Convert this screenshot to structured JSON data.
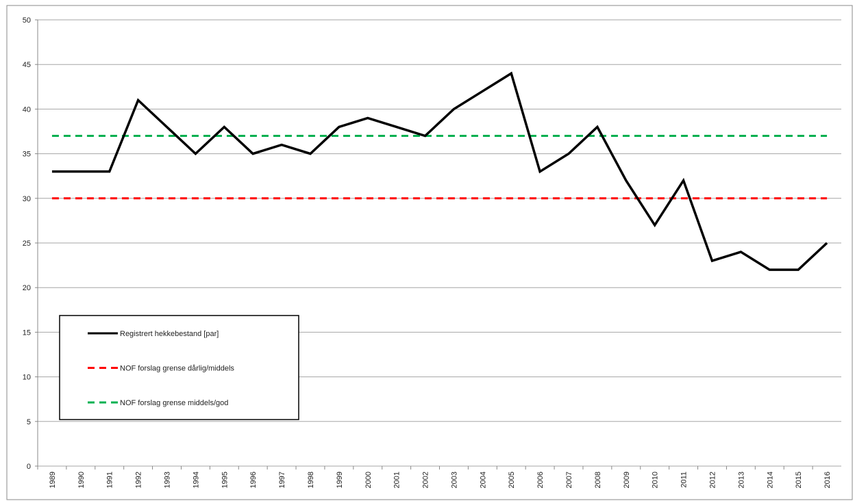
{
  "chart_data": {
    "type": "line",
    "categories": [
      "1989",
      "1990",
      "1991",
      "1992",
      "1993",
      "1994",
      "1995",
      "1996",
      "1997",
      "1998",
      "1999",
      "2000",
      "2001",
      "2002",
      "2003",
      "2004",
      "2005",
      "2006",
      "2007",
      "2008",
      "2009",
      "2010",
      "2011",
      "2012",
      "2013",
      "2014",
      "2015",
      "2016"
    ],
    "series": [
      {
        "name": "Registrert hekkebestand [par]",
        "color": "#000000",
        "style": "solid",
        "values": [
          33,
          33,
          33,
          41,
          38,
          35,
          38,
          35,
          36,
          35,
          38,
          39,
          38,
          37,
          40,
          42,
          44,
          33,
          35,
          38,
          32,
          27,
          32,
          23,
          24,
          22,
          22,
          25
        ]
      },
      {
        "name": "NOF forslag grense dårlig/middels",
        "color": "#ff0000",
        "style": "dashed",
        "values": [
          30,
          30,
          30,
          30,
          30,
          30,
          30,
          30,
          30,
          30,
          30,
          30,
          30,
          30,
          30,
          30,
          30,
          30,
          30,
          30,
          30,
          30,
          30,
          30,
          30,
          30,
          30,
          30
        ]
      },
      {
        "name": "NOF forslag grense middels/god",
        "color": "#00b050",
        "style": "dashed",
        "values": [
          37,
          37,
          37,
          37,
          37,
          37,
          37,
          37,
          37,
          37,
          37,
          37,
          37,
          37,
          37,
          37,
          37,
          37,
          37,
          37,
          37,
          37,
          37,
          37,
          37,
          37,
          37,
          37
        ]
      }
    ],
    "ylim": [
      0,
      50
    ],
    "yticks": [
      0,
      5,
      10,
      15,
      20,
      25,
      30,
      35,
      40,
      45,
      50
    ],
    "grid": true
  }
}
